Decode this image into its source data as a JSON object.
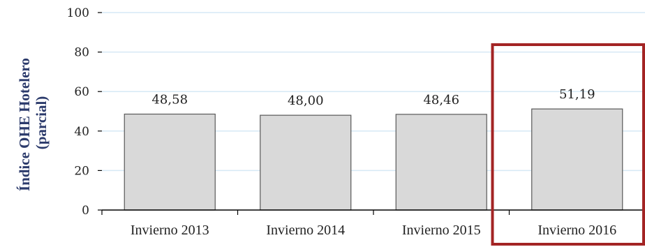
{
  "chart_data": {
    "type": "bar",
    "title": "",
    "xlabel": "",
    "ylabel_lines": [
      "Índice OHE Hotelero",
      "(parcial)"
    ],
    "categories": [
      "Invierno 2013",
      "Invierno 2014",
      "Invierno 2015",
      "Invierno 2016"
    ],
    "values": [
      48.58,
      48.0,
      48.46,
      51.19
    ],
    "value_labels": [
      "48,58",
      "48,00",
      "48,46",
      "51,19"
    ],
    "ylim": [
      0,
      100
    ],
    "yticks": [
      0,
      20,
      40,
      60,
      80,
      100
    ],
    "grid": true,
    "highlight_category": "Invierno 2016",
    "colors": {
      "bar_fill": "#d9d9d9",
      "bar_stroke": "#595959",
      "grid": "#d6e9f5",
      "highlight_box": "#a32424",
      "axis_title": "#2b3a6b"
    }
  }
}
